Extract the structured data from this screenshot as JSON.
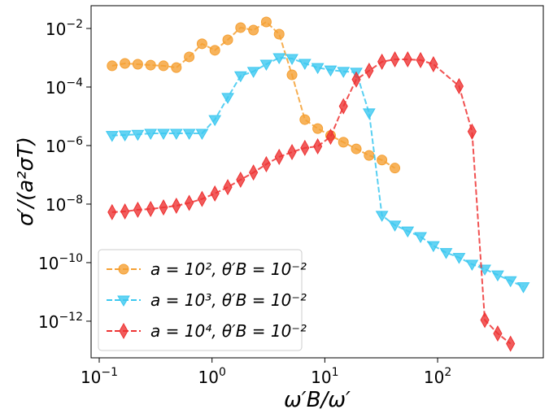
{
  "chart_data": {
    "type": "line",
    "log_x": true,
    "log_y": true,
    "xlabel": "ω′B/ω′",
    "ylabel": "σ′/(a²σT)",
    "xlim": [
      0.0847,
      865
    ],
    "ylim": [
      5.6e-14,
      0.06
    ],
    "xticks": [
      {
        "value": 0.1,
        "label": "10",
        "exponent": "−1"
      },
      {
        "value": 1,
        "label": "10",
        "exponent": "0"
      },
      {
        "value": 10,
        "label": "10",
        "exponent": "1"
      },
      {
        "value": 100,
        "label": "10",
        "exponent": "2"
      }
    ],
    "yticks": [
      {
        "value": 1e-12,
        "label": "10",
        "exponent": "−12"
      },
      {
        "value": 1e-10,
        "label": "10",
        "exponent": "−10"
      },
      {
        "value": 1e-08,
        "label": "10",
        "exponent": "−8"
      },
      {
        "value": 1e-06,
        "label": "10",
        "exponent": "−6"
      },
      {
        "value": 0.0001,
        "label": "10",
        "exponent": "−4"
      },
      {
        "value": 0.01,
        "label": "10",
        "exponent": "−2"
      }
    ],
    "legend": "lower left",
    "series": [
      {
        "name": "a = 10², θ′B = 10⁻²",
        "color": "#f5a033",
        "marker": "circle",
        "x": [
          0.13,
          0.169,
          0.2197,
          0.2856,
          0.3713,
          0.4827,
          0.6275,
          0.8157,
          1.06,
          1.379,
          1.792,
          2.33,
          3.029,
          3.937,
          5.119,
          6.654,
          8.65,
          11.25,
          14.62,
          19.0,
          24.7,
          32.1,
          41.8
        ],
        "values": [
          0.00053,
          0.00064,
          0.0006,
          0.00056,
          0.00053,
          0.00046,
          0.00107,
          0.003,
          0.0018,
          0.0041,
          0.0107,
          0.0088,
          0.0167,
          0.0064,
          0.00026,
          7.7e-06,
          3.8e-06,
          2.2e-06,
          1.3e-06,
          7.7e-07,
          4.6e-07,
          3.2e-07,
          1.7e-07
        ]
      },
      {
        "name": "a = 10³, θ′B = 10⁻²",
        "color": "#3cc8f0",
        "marker": "triangle-down",
        "x": [
          0.13,
          0.169,
          0.2197,
          0.2856,
          0.3713,
          0.4827,
          0.6275,
          0.8157,
          1.06,
          1.379,
          1.792,
          2.33,
          3.029,
          3.937,
          5.119,
          6.654,
          8.65,
          11.25,
          14.62,
          19.0,
          24.7,
          32.1,
          41.8,
          54.3,
          70.6,
          91.8,
          119,
          155,
          202,
          262,
          341,
          443,
          576
        ],
        "values": [
          2.2e-06,
          2.3e-06,
          2.4e-06,
          2.6e-06,
          2.6e-06,
          2.6e-06,
          2.6e-06,
          2.6e-06,
          7.7e-06,
          4.4e-05,
          0.00024,
          0.00034,
          0.0006,
          0.001,
          0.00094,
          0.00064,
          0.00046,
          0.00038,
          0.00034,
          0.00032,
          1.3e-05,
          4.1e-09,
          1.9e-09,
          1.2e-09,
          7.7e-10,
          3.8e-10,
          2.2e-10,
          1.5e-10,
          8.8e-11,
          6e-11,
          3.8e-11,
          2.4e-11,
          1.5e-11
        ]
      },
      {
        "name": "a = 10⁴, θ′B = 10⁻²",
        "color": "#ee3333",
        "marker": "diamond",
        "x": [
          0.13,
          0.169,
          0.2197,
          0.2856,
          0.3713,
          0.4827,
          0.6275,
          0.8157,
          1.06,
          1.379,
          1.792,
          2.33,
          3.029,
          3.937,
          5.119,
          6.654,
          8.65,
          11.25,
          14.62,
          19.0,
          24.7,
          32.1,
          41.8,
          54.3,
          70.6,
          91.8,
          155,
          202,
          262,
          341,
          443
        ],
        "values": [
          5.3e-09,
          5.6e-09,
          6.4e-09,
          6.8e-09,
          7.7e-09,
          8.8e-09,
          1.1e-08,
          1.5e-08,
          2.3e-08,
          3.8e-08,
          6.8e-08,
          1.2e-07,
          2.3e-07,
          4.1e-07,
          6e-07,
          8.3e-07,
          9.4e-07,
          2e-06,
          2.2e-05,
          0.00018,
          0.00036,
          0.00073,
          0.00088,
          0.00088,
          0.00083,
          0.0006,
          0.000107,
          3e-06,
          1.1e-12,
          3.8e-13,
          1.7e-13
        ]
      }
    ]
  }
}
